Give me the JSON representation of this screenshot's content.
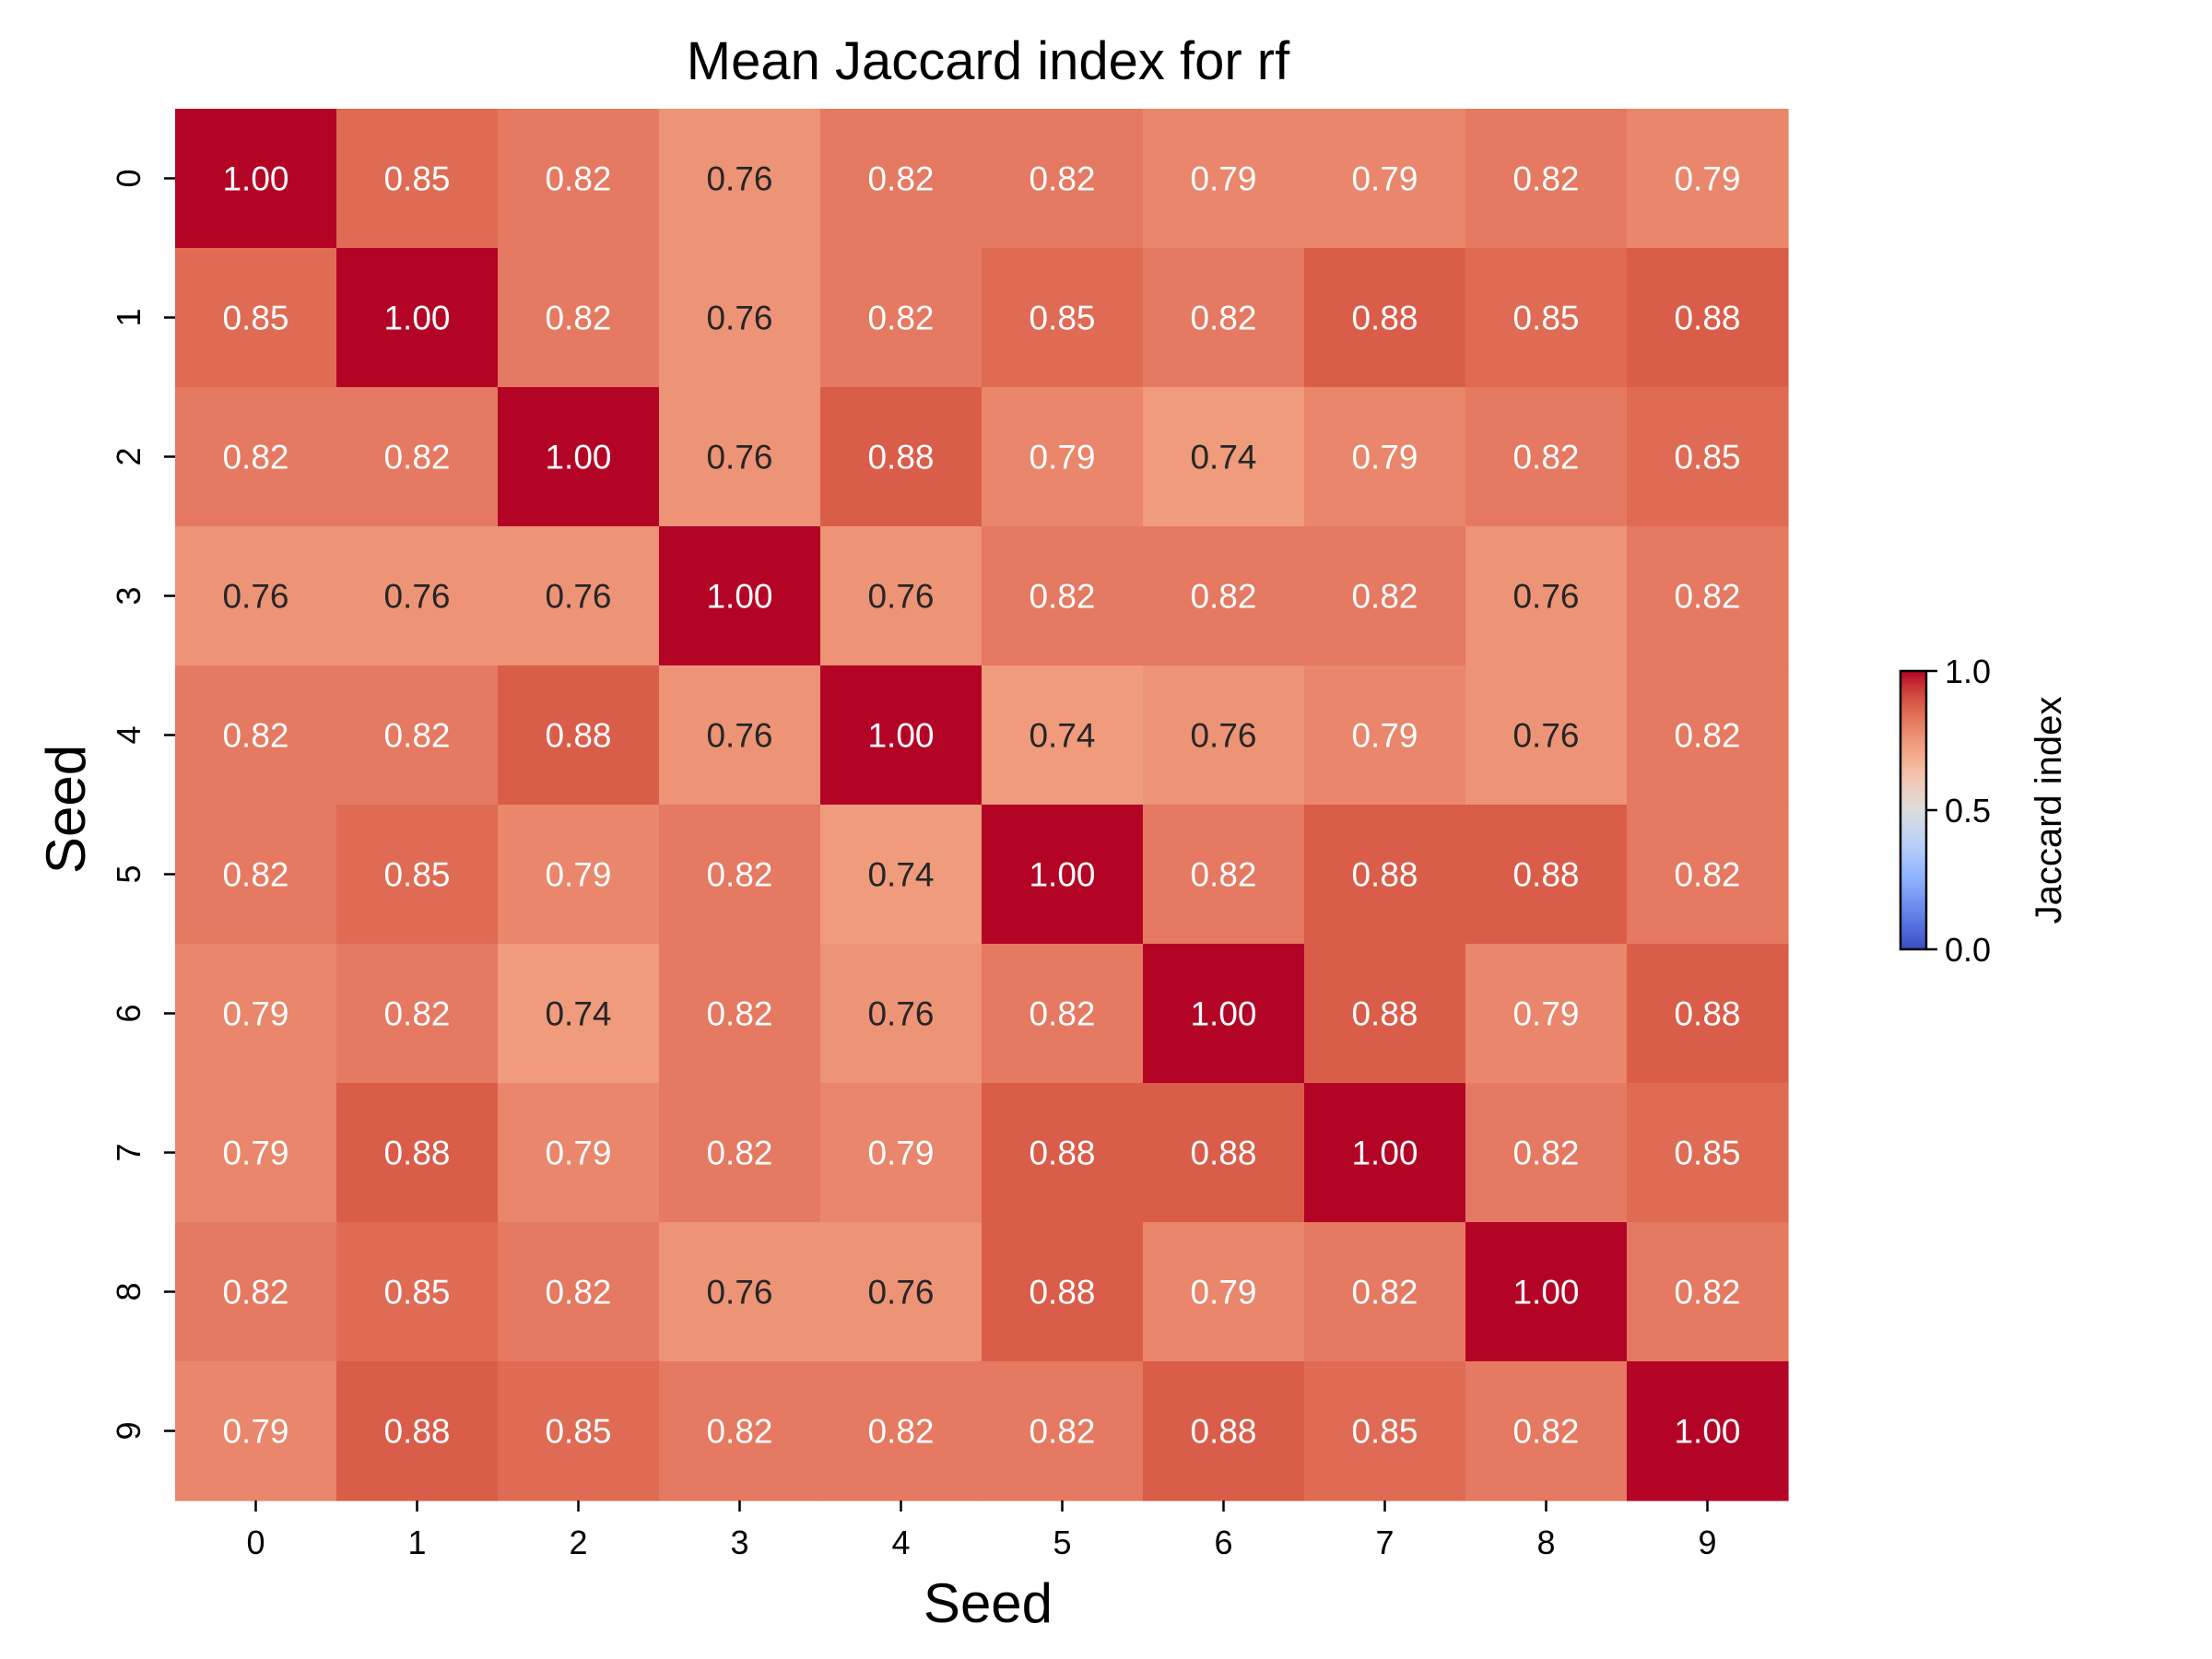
{
  "chart_data": {
    "type": "heatmap",
    "title": "Mean Jaccard index for rf",
    "xlabel": "Seed",
    "ylabel": "Seed",
    "x_categories": [
      "0",
      "1",
      "2",
      "3",
      "4",
      "5",
      "6",
      "7",
      "8",
      "9"
    ],
    "y_categories": [
      "0",
      "1",
      "2",
      "3",
      "4",
      "5",
      "6",
      "7",
      "8",
      "9"
    ],
    "values": [
      [
        1.0,
        0.85,
        0.82,
        0.76,
        0.82,
        0.82,
        0.79,
        0.79,
        0.82,
        0.79
      ],
      [
        0.85,
        1.0,
        0.82,
        0.76,
        0.82,
        0.85,
        0.82,
        0.88,
        0.85,
        0.88
      ],
      [
        0.82,
        0.82,
        1.0,
        0.76,
        0.88,
        0.79,
        0.74,
        0.79,
        0.82,
        0.85
      ],
      [
        0.76,
        0.76,
        0.76,
        1.0,
        0.76,
        0.82,
        0.82,
        0.82,
        0.76,
        0.82
      ],
      [
        0.82,
        0.82,
        0.88,
        0.76,
        1.0,
        0.74,
        0.76,
        0.79,
        0.76,
        0.82
      ],
      [
        0.82,
        0.85,
        0.79,
        0.82,
        0.74,
        1.0,
        0.82,
        0.88,
        0.88,
        0.82
      ],
      [
        0.79,
        0.82,
        0.74,
        0.82,
        0.76,
        0.82,
        1.0,
        0.88,
        0.79,
        0.88
      ],
      [
        0.79,
        0.88,
        0.79,
        0.82,
        0.79,
        0.88,
        0.88,
        1.0,
        0.82,
        0.85
      ],
      [
        0.82,
        0.85,
        0.82,
        0.76,
        0.76,
        0.88,
        0.79,
        0.82,
        1.0,
        0.82
      ],
      [
        0.79,
        0.88,
        0.85,
        0.82,
        0.82,
        0.82,
        0.88,
        0.85,
        0.82,
        1.0
      ]
    ],
    "value_format": "0.00",
    "colormap": "coolwarm",
    "vmin": 0.0,
    "vmax": 1.0,
    "colorbar": {
      "label": "Jaccard index",
      "ticks": [
        0.0,
        0.5,
        1.0
      ],
      "tick_labels": [
        "0.0",
        "0.5",
        "1.0"
      ]
    },
    "colors": {
      "low": "#3b4cc0",
      "mid": "#dddddd",
      "high": "#b40426",
      "text_light": "#ffffff",
      "text_dark": "#262626"
    }
  }
}
